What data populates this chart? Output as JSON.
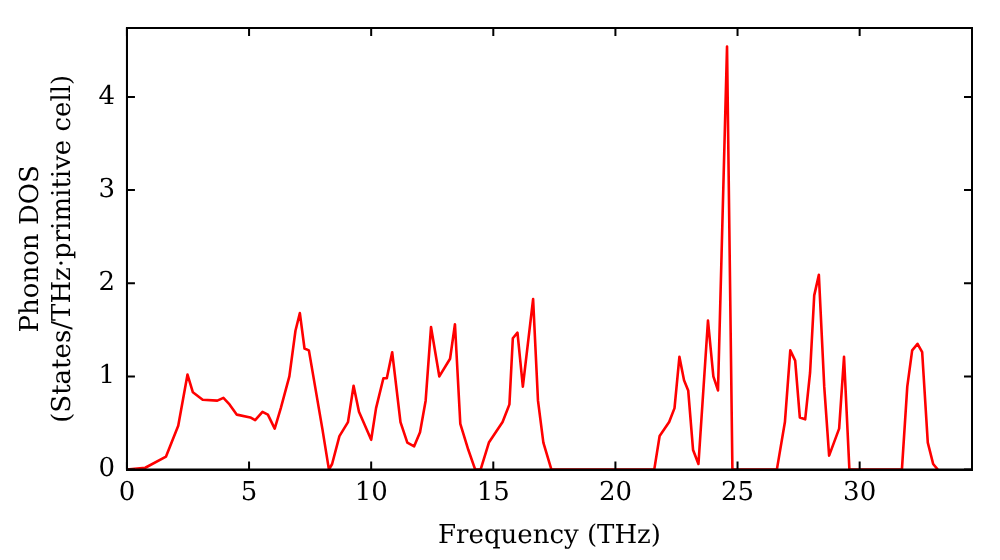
{
  "chart_data": {
    "type": "line",
    "xlabel": "Frequency (THz)",
    "ylabel": "Phonon DOS\n(States/THz·primitive cell)",
    "xlim": [
      0,
      34.6
    ],
    "ylim": [
      0,
      4.74
    ],
    "xticks": [
      0,
      5,
      10,
      15,
      20,
      25,
      30
    ],
    "yticks": [
      0,
      1,
      2,
      3,
      4
    ],
    "grid": false,
    "legend": false,
    "marker": "none",
    "line_style": "solid",
    "series": [
      {
        "color": "#ff0000",
        "x": [
          0,
          0.75,
          1.6,
          2.1,
          2.48,
          2.7,
          3.1,
          3.7,
          3.95,
          4.2,
          4.5,
          5.05,
          5.25,
          5.55,
          5.77,
          6.05,
          6.3,
          6.65,
          6.9,
          7.08,
          7.27,
          7.45,
          8.0,
          8.27,
          8.4,
          8.7,
          9.05,
          9.28,
          9.5,
          10.0,
          10.2,
          10.5,
          10.64,
          10.86,
          11.2,
          11.48,
          11.76,
          12.0,
          12.23,
          12.45,
          12.79,
          13.23,
          13.43,
          13.65,
          13.98,
          14.26,
          14.48,
          14.82,
          15.38,
          15.66,
          15.8,
          15.99,
          16.21,
          16.63,
          16.83,
          17.05,
          17.38,
          21.59,
          21.81,
          22.2,
          22.42,
          22.62,
          22.81,
          22.98,
          23.18,
          23.4,
          23.79,
          24.01,
          24.2,
          24.57,
          24.79,
          26.61,
          26.94,
          27.16,
          27.36,
          27.55,
          27.77,
          27.97,
          28.14,
          28.33,
          28.55,
          28.75,
          29.16,
          29.36,
          29.58,
          31.73,
          31.95,
          32.15,
          32.37,
          32.56,
          32.79,
          33.01,
          33.2
        ],
        "values": [
          0,
          0.02,
          0.14,
          0.47,
          1.02,
          0.83,
          0.75,
          0.74,
          0.77,
          0.7,
          0.59,
          0.56,
          0.53,
          0.62,
          0.59,
          0.44,
          0.66,
          1.0,
          1.49,
          1.68,
          1.3,
          1.28,
          0.44,
          0,
          0.06,
          0.36,
          0.51,
          0.9,
          0.62,
          0.32,
          0.66,
          0.98,
          0.98,
          1.26,
          0.51,
          0.29,
          0.25,
          0.4,
          0.74,
          1.53,
          1.0,
          1.19,
          1.56,
          0.49,
          0.21,
          0,
          0,
          0.29,
          0.51,
          0.7,
          1.41,
          1.47,
          0.89,
          1.83,
          0.74,
          0.29,
          0,
          0,
          0.36,
          0.51,
          0.66,
          1.21,
          0.96,
          0.85,
          0.21,
          0.06,
          1.6,
          1.0,
          0.85,
          4.54,
          0,
          0,
          0.51,
          1.28,
          1.17,
          0.56,
          0.54,
          1.04,
          1.87,
          2.09,
          0.89,
          0.15,
          0.44,
          1.21,
          0,
          0,
          0.89,
          1.28,
          1.35,
          1.26,
          0.29,
          0.06,
          0
        ]
      }
    ],
    "tick_labels": true
  }
}
